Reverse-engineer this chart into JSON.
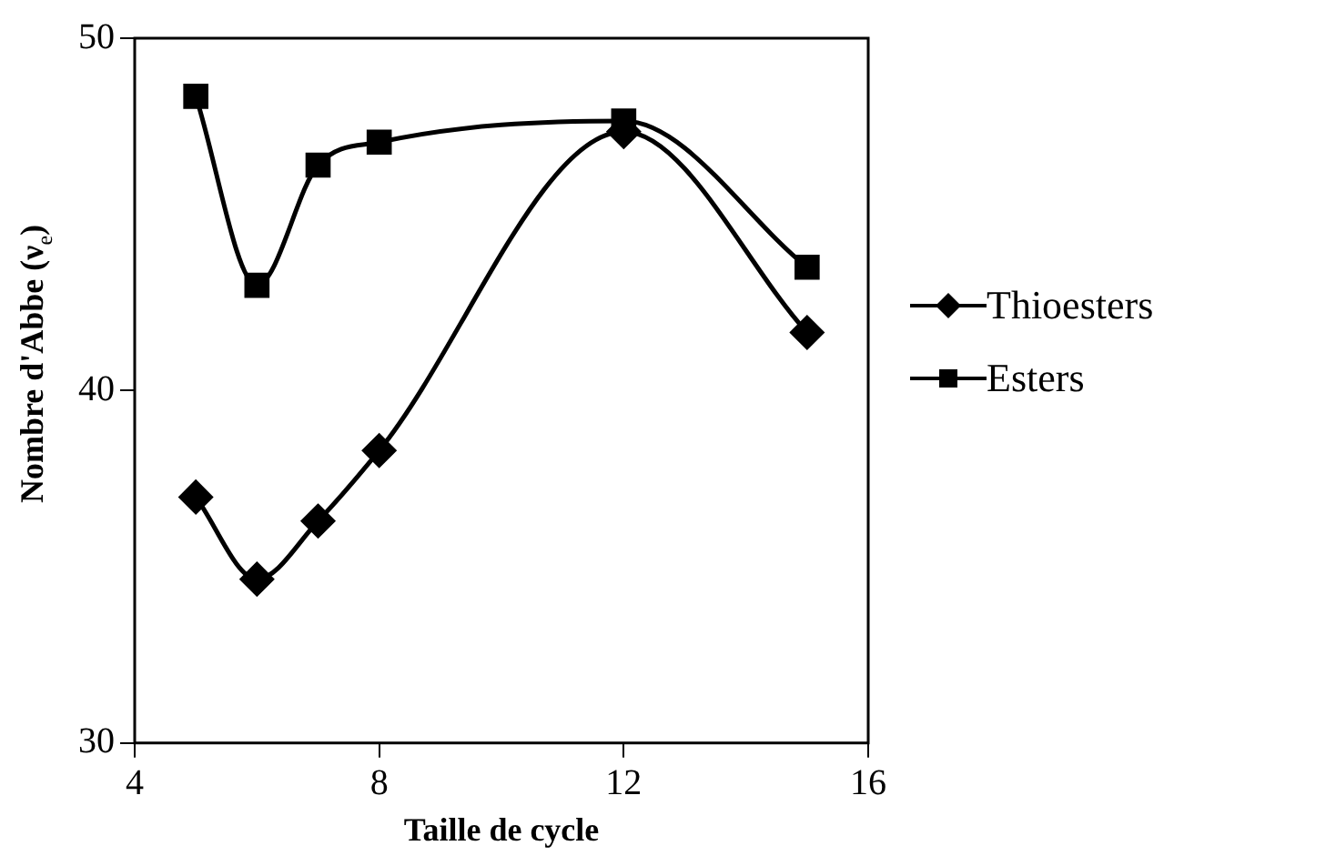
{
  "chart_data": {
    "type": "line",
    "xlabel": "Taille de cycle",
    "ylabel": "Nombre d'Abbe (ν$_{e}$)",
    "x": [
      5,
      6,
      7,
      8,
      12,
      15
    ],
    "series": [
      {
        "name": "Thioesters",
        "color": "#000000",
        "marker": "diamond",
        "values": [
          36.98,
          34.65,
          36.3,
          38.3,
          47.35,
          41.65
        ]
      },
      {
        "name": "Esters",
        "color": "#000000",
        "marker": "square",
        "values": [
          48.35,
          42.99,
          46.4,
          47.05,
          47.65,
          43.5
        ]
      }
    ],
    "xlim": [
      4,
      16
    ],
    "xticks": [
      4,
      8,
      12,
      16
    ],
    "ylim": [
      30,
      50
    ],
    "yticks": [
      30,
      40,
      50
    ],
    "grid": false,
    "legend": "right",
    "line_style": "solid"
  }
}
